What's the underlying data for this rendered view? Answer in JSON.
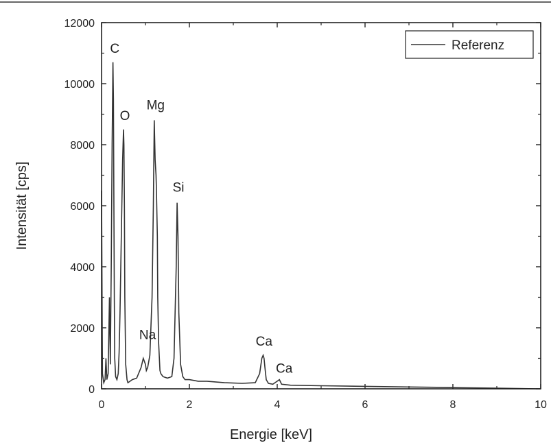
{
  "chart_data": {
    "type": "line",
    "xlabel": "Energie [keV]",
    "ylabel": "Intensität [cps]",
    "xlim": [
      0,
      10
    ],
    "ylim": [
      0,
      12000
    ],
    "x_ticks": [
      "0",
      "2",
      "4",
      "6",
      "8",
      "10"
    ],
    "y_ticks": [
      "0",
      "2000",
      "4000",
      "6000",
      "8000",
      "10000",
      "12000"
    ],
    "grid": false,
    "legend": {
      "position": "top-right",
      "entries": [
        "Referenz"
      ]
    },
    "series": [
      {
        "name": "Referenz",
        "color": "#333333",
        "x": [
          0.0,
          0.02,
          0.05,
          0.08,
          0.1,
          0.12,
          0.15,
          0.18,
          0.2,
          0.22,
          0.24,
          0.26,
          0.27,
          0.28,
          0.29,
          0.3,
          0.32,
          0.35,
          0.38,
          0.4,
          0.42,
          0.45,
          0.48,
          0.5,
          0.51,
          0.52,
          0.53,
          0.55,
          0.58,
          0.6,
          0.65,
          0.7,
          0.8,
          0.9,
          0.95,
          1.0,
          1.02,
          1.05,
          1.1,
          1.15,
          1.18,
          1.2,
          1.22,
          1.24,
          1.25,
          1.27,
          1.28,
          1.3,
          1.33,
          1.35,
          1.4,
          1.5,
          1.6,
          1.65,
          1.7,
          1.72,
          1.74,
          1.76,
          1.8,
          1.85,
          1.9,
          2.0,
          2.2,
          2.4,
          2.8,
          3.2,
          3.5,
          3.6,
          3.65,
          3.68,
          3.7,
          3.72,
          3.75,
          3.8,
          3.9,
          4.0,
          4.05,
          4.1,
          4.3,
          5.0,
          6.0,
          7.0,
          8.0,
          9.0,
          10.0
        ],
        "y": [
          6500,
          500,
          200,
          300,
          1000,
          300,
          500,
          3000,
          800,
          4000,
          8000,
          10700,
          9500,
          6500,
          3000,
          1000,
          400,
          300,
          500,
          1200,
          2500,
          5000,
          7500,
          8500,
          8000,
          6000,
          3000,
          800,
          300,
          200,
          250,
          300,
          350,
          700,
          1000,
          800,
          600,
          700,
          1100,
          3000,
          6000,
          8800,
          7500,
          7000,
          6500,
          5000,
          3000,
          1500,
          600,
          500,
          400,
          350,
          400,
          1000,
          4000,
          6100,
          5000,
          2500,
          800,
          400,
          300,
          300,
          250,
          250,
          200,
          180,
          200,
          500,
          1000,
          1100,
          1000,
          700,
          300,
          180,
          150,
          250,
          300,
          150,
          120,
          100,
          80,
          60,
          40,
          20,
          0
        ]
      }
    ],
    "annotations": [
      {
        "text": "C",
        "x": 0.27,
        "y": 10700
      },
      {
        "text": "O",
        "x": 0.5,
        "y": 8500
      },
      {
        "text": "Mg",
        "x": 1.2,
        "y": 8800
      },
      {
        "text": "Si",
        "x": 1.72,
        "y": 6100
      },
      {
        "text": "Na",
        "x": 1.0,
        "y": 1000
      },
      {
        "text": "Ca",
        "x": 3.7,
        "y": 1100
      },
      {
        "text": "Ca",
        "x": 4.05,
        "y": 300
      }
    ]
  }
}
